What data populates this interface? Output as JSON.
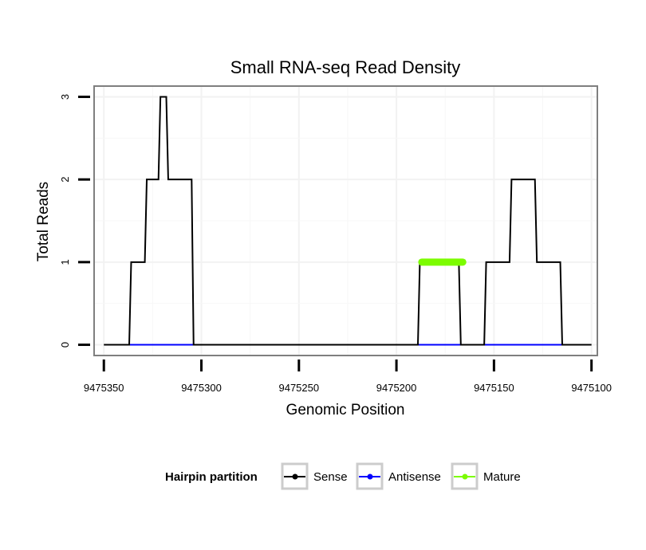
{
  "chart_data": {
    "type": "line",
    "title": "Small RNA-seq Read Density",
    "xlabel": "Genomic Position",
    "ylabel": "Total Reads",
    "x_reversed": true,
    "xlim": [
      9475355,
      9475097
    ],
    "ylim": [
      -0.13,
      3.13
    ],
    "x_ticks": [
      9475350,
      9475300,
      9475250,
      9475200,
      9475150,
      9475100
    ],
    "x_tick_labels": [
      "9475350",
      "9475300",
      "9475250",
      "9475200",
      "9475150",
      "9475100"
    ],
    "y_ticks": [
      0,
      1,
      2,
      3
    ],
    "y_tick_labels": [
      "0",
      "1",
      "2",
      "3"
    ],
    "grid": true,
    "legend": {
      "title": "Hairpin partition",
      "position": "bottom",
      "entries": [
        "Sense",
        "Antisense",
        "Mature"
      ]
    },
    "series": [
      {
        "name": "Sense",
        "color": "#000000",
        "x": [
          9475350,
          9475337,
          9475336,
          9475329,
          9475328,
          9475322,
          9475321,
          9475318,
          9475317,
          9475305,
          9475304,
          9475189,
          9475188,
          9475168,
          9475167,
          9475155,
          9475154,
          9475142,
          9475141,
          9475129,
          9475128,
          9475116,
          9475115,
          9475100
        ],
        "y": [
          0,
          0,
          1,
          1,
          2,
          2,
          3,
          3,
          2,
          2,
          0,
          0,
          1,
          1,
          0,
          0,
          1,
          1,
          2,
          2,
          1,
          1,
          0,
          0
        ]
      },
      {
        "name": "Antisense",
        "color": "#0000ff",
        "x": [
          9475337,
          9475300,
          9475188,
          9475168,
          9475155,
          9475115
        ],
        "y": [
          0,
          0,
          0,
          0,
          0,
          0
        ]
      },
      {
        "name": "Mature",
        "color": "#7cfc00",
        "x": [
          9475187,
          9475166
        ],
        "y": [
          1,
          1
        ]
      }
    ]
  }
}
